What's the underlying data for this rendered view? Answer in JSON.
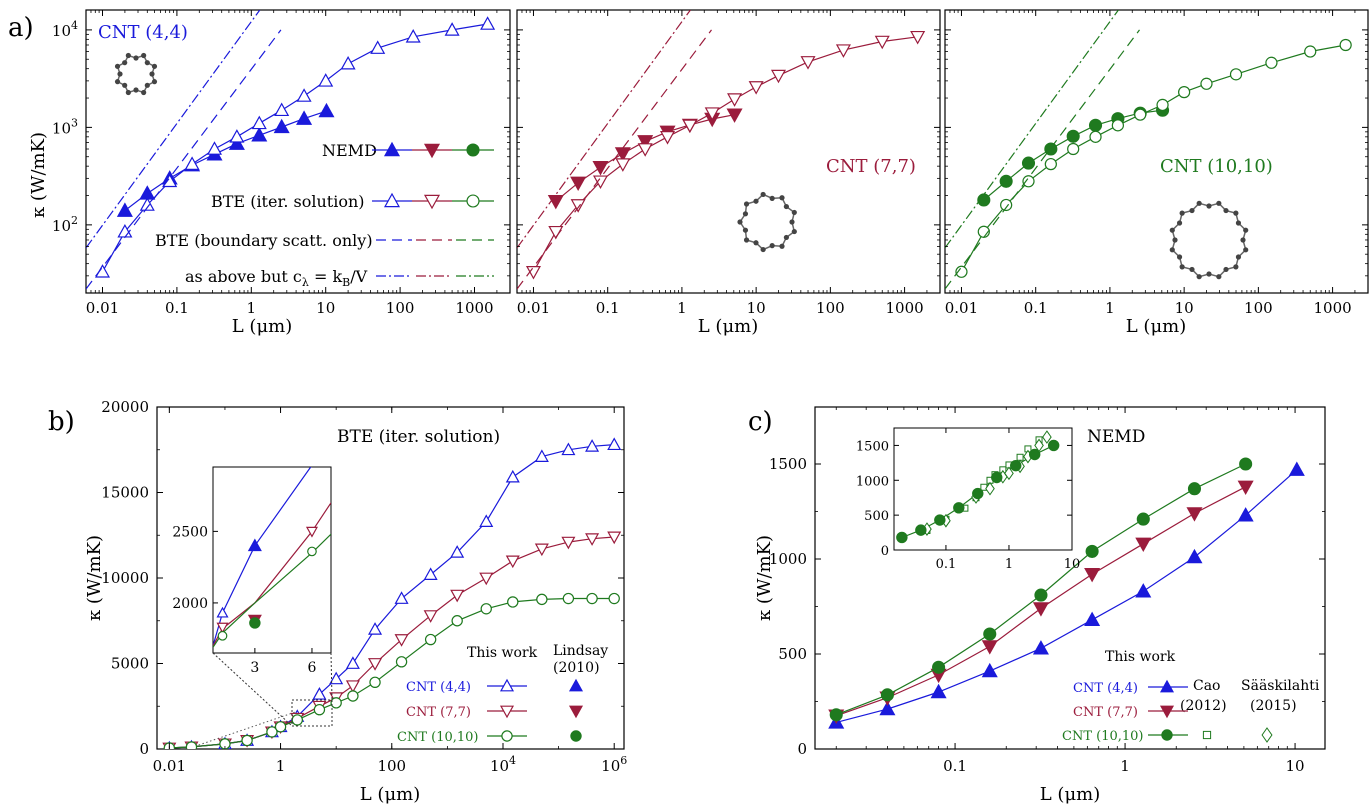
{
  "figure": {
    "panel_labels": [
      "a)",
      "b)",
      "c)"
    ]
  },
  "colors": {
    "blue": "#1a1adb",
    "red": "#9b1c3c",
    "green": "#1f7a1f"
  },
  "chart_data": [
    {
      "id": "a1",
      "type": "line",
      "title": "CNT (4,4)",
      "xlabel": "L (μm)",
      "ylabel": "κ (W/mK)",
      "xscale": "log",
      "yscale": "log",
      "xlim": [
        0.006,
        3000
      ],
      "ylim": [
        20,
        16000
      ],
      "xticks": [
        "0.01",
        "0.1",
        "1",
        "10",
        "100",
        "1000"
      ],
      "yticks": [
        "10^2",
        "10^3",
        "10^4"
      ],
      "legend": [
        {
          "label": "NEMD"
        },
        {
          "label": "BTE (iter. solution)"
        },
        {
          "label": "BTE (boundary scatt. only)"
        },
        {
          "label": "as above but c_λ = k_B/V"
        }
      ],
      "series": [
        {
          "name": "NEMD",
          "marker": "triangle-filled",
          "x": [
            0.02,
            0.04,
            0.08,
            0.16,
            0.32,
            0.64,
            1.28,
            2.56,
            5.12,
            10.24
          ],
          "y": [
            140,
            210,
            300,
            410,
            530,
            680,
            830,
            1010,
            1230,
            1470
          ]
        },
        {
          "name": "BTE (iter. solution)",
          "marker": "triangle-open",
          "x": [
            0.01,
            0.02,
            0.04,
            0.08,
            0.16,
            0.32,
            0.64,
            1.28,
            2.56,
            5.12,
            10,
            20,
            50,
            150,
            500,
            1500
          ],
          "y": [
            33,
            85,
            160,
            280,
            420,
            600,
            800,
            1100,
            1500,
            2100,
            3000,
            4500,
            6500,
            8500,
            10000,
            11500
          ]
        },
        {
          "name": "BTE (boundary scatt. only)",
          "line": "dashed",
          "x": [
            0.006,
            2.5
          ],
          "y": [
            22,
            10000
          ]
        },
        {
          "name": "as above but c_λ = k_B/V",
          "line": "dashdot",
          "x": [
            0.006,
            1.3
          ],
          "y": [
            58,
            16000
          ]
        }
      ]
    },
    {
      "id": "a2",
      "type": "line",
      "title": "CNT (7,7)",
      "xlabel": "L (μm)",
      "xscale": "log",
      "yscale": "log",
      "xlim": [
        0.006,
        3000
      ],
      "ylim": [
        20,
        16000
      ],
      "xticks": [
        "0.01",
        "0.1",
        "1",
        "10",
        "100",
        "1000"
      ],
      "series": [
        {
          "name": "NEMD",
          "marker": "triangle-down-filled",
          "x": [
            0.02,
            0.04,
            0.08,
            0.16,
            0.32,
            0.64,
            1.28,
            2.56,
            5.12
          ],
          "y": [
            175,
            270,
            390,
            540,
            720,
            900,
            1060,
            1220,
            1350
          ]
        },
        {
          "name": "BTE (iter. solution)",
          "marker": "triangle-down-open",
          "x": [
            0.01,
            0.02,
            0.04,
            0.08,
            0.16,
            0.32,
            0.64,
            1.28,
            2.56,
            5.12,
            10,
            20,
            50,
            150,
            500,
            1500
          ],
          "y": [
            33,
            85,
            160,
            280,
            420,
            600,
            800,
            1050,
            1400,
            1950,
            2600,
            3400,
            4700,
            6200,
            7600,
            8500
          ]
        },
        {
          "name": "BTE (boundary scatt. only)",
          "line": "dashed",
          "x": [
            0.006,
            2.5
          ],
          "y": [
            22,
            10000
          ]
        },
        {
          "name": "as above but c_λ = k_B/V",
          "line": "dashdot",
          "x": [
            0.006,
            1.3
          ],
          "y": [
            58,
            16000
          ]
        }
      ]
    },
    {
      "id": "a3",
      "type": "line",
      "title": "CNT (10,10)",
      "xlabel": "L (μm)",
      "xscale": "log",
      "yscale": "log",
      "xlim": [
        0.006,
        3000
      ],
      "ylim": [
        20,
        16000
      ],
      "xticks": [
        "0.01",
        "0.1",
        "1",
        "10",
        "100",
        "1000"
      ],
      "series": [
        {
          "name": "NEMD",
          "marker": "circle-filled",
          "x": [
            0.02,
            0.04,
            0.08,
            0.16,
            0.32,
            0.64,
            1.28,
            2.56,
            5.12
          ],
          "y": [
            180,
            280,
            430,
            600,
            810,
            1050,
            1230,
            1400,
            1500
          ]
        },
        {
          "name": "BTE (iter. solution)",
          "marker": "circle-open",
          "x": [
            0.01,
            0.02,
            0.04,
            0.08,
            0.16,
            0.32,
            0.64,
            1.28,
            2.56,
            5.12,
            10,
            20,
            50,
            150,
            500,
            1500
          ],
          "y": [
            33,
            85,
            160,
            280,
            420,
            600,
            800,
            1050,
            1350,
            1700,
            2300,
            2800,
            3500,
            4600,
            6000,
            7000
          ]
        },
        {
          "name": "BTE (boundary scatt. only)",
          "line": "dashed",
          "x": [
            0.006,
            2.5
          ],
          "y": [
            22,
            10000
          ]
        },
        {
          "name": "as above but c_λ = k_B/V",
          "line": "dashdot",
          "x": [
            0.006,
            1.3
          ],
          "y": [
            58,
            16000
          ]
        }
      ]
    },
    {
      "id": "b",
      "type": "line",
      "title": "BTE (iter. solution)",
      "xlabel": "L (μm)",
      "ylabel": "κ (W/mK)",
      "xscale": "log",
      "yscale": "linear",
      "xlim": [
        0.006,
        1500000
      ],
      "ylim": [
        0,
        20000
      ],
      "xticks": [
        "0.01",
        "1",
        "100",
        "10^4",
        "10^6"
      ],
      "yticks": [
        "0",
        "5000",
        "10000",
        "15000",
        "20000"
      ],
      "legend_title": "This work",
      "legend_ref": "Lindsay (2010)",
      "series": [
        {
          "name": "CNT (4,4)",
          "marker": "triangle-open",
          "x": [
            0.01,
            0.025,
            0.1,
            0.25,
            0.7,
            1,
            2,
            5,
            10,
            20,
            50,
            150,
            500,
            1500,
            5000,
            15000,
            50000,
            150000,
            400000,
            1000000
          ],
          "y": [
            60,
            120,
            300,
            500,
            1000,
            1300,
            1900,
            3200,
            4100,
            5000,
            7000,
            8800,
            10200,
            11500,
            13300,
            15900,
            17100,
            17500,
            17700,
            17800
          ]
        },
        {
          "name": "CNT (7,7)",
          "marker": "triangle-down-open",
          "x": [
            0.01,
            0.025,
            0.1,
            0.25,
            0.7,
            1,
            2,
            5,
            10,
            20,
            50,
            150,
            500,
            1500,
            5000,
            15000,
            50000,
            150000,
            400000,
            1000000
          ],
          "y": [
            60,
            120,
            300,
            500,
            1000,
            1300,
            1800,
            2500,
            3000,
            3700,
            5000,
            6400,
            7800,
            9000,
            10000,
            11000,
            11700,
            12100,
            12300,
            12400
          ]
        },
        {
          "name": "CNT (10,10)",
          "marker": "circle-open",
          "x": [
            0.01,
            0.025,
            0.1,
            0.25,
            0.7,
            1,
            2,
            5,
            10,
            20,
            50,
            150,
            500,
            1500,
            5000,
            15000,
            50000,
            150000,
            400000,
            1000000
          ],
          "y": [
            60,
            120,
            300,
            500,
            1000,
            1300,
            1700,
            2300,
            2700,
            3100,
            3900,
            5100,
            6400,
            7500,
            8200,
            8600,
            8750,
            8800,
            8800,
            8800
          ]
        }
      ],
      "inset": {
        "xlim": [
          0.8,
          7
        ],
        "ylim": [
          1650,
          2950
        ],
        "xticks": [
          "3",
          "6"
        ],
        "yticks": [
          "2000",
          "2500"
        ],
        "lindsay_points": [
          {
            "series": "CNT (4,4)",
            "x": 3,
            "y": 2400
          },
          {
            "series": "CNT (7,7)",
            "x": 3,
            "y": 1880
          },
          {
            "series": "CNT (10,10)",
            "x": 3,
            "y": 1860
          }
        ]
      }
    },
    {
      "id": "c",
      "type": "line",
      "title": "NEMD",
      "xlabel": "L (μm)",
      "ylabel": "κ (W/mK)",
      "xscale": "log",
      "yscale": "linear",
      "xlim": [
        0.015,
        15
      ],
      "ylim": [
        0,
        1800
      ],
      "xticks": [
        "0.1",
        "1",
        "10"
      ],
      "yticks": [
        "0",
        "500",
        "1000",
        "1500"
      ],
      "legend_title": "This work",
      "refs": [
        "Cao (2012)",
        "Sääskilahti (2015)"
      ],
      "series": [
        {
          "name": "CNT (4,4)",
          "marker": "triangle-filled",
          "x": [
            0.02,
            0.04,
            0.08,
            0.16,
            0.32,
            0.64,
            1.28,
            2.56,
            5.12,
            10.24
          ],
          "y": [
            140,
            210,
            300,
            410,
            530,
            680,
            830,
            1010,
            1230,
            1470
          ]
        },
        {
          "name": "CNT (7,7)",
          "marker": "triangle-down-filled",
          "x": [
            0.02,
            0.04,
            0.08,
            0.16,
            0.32,
            0.64,
            1.28,
            2.56,
            5.12
          ],
          "y": [
            175,
            270,
            390,
            540,
            740,
            920,
            1080,
            1240,
            1380
          ]
        },
        {
          "name": "CNT (10,10)",
          "marker": "circle-filled",
          "x": [
            0.02,
            0.04,
            0.08,
            0.16,
            0.32,
            0.64,
            1.28,
            2.56,
            5.12
          ],
          "y": [
            180,
            285,
            430,
            605,
            810,
            1040,
            1210,
            1370,
            1500
          ]
        }
      ],
      "inset": {
        "xlim": [
          0.015,
          10
        ],
        "ylim": [
          0,
          1750
        ],
        "xticks": [
          "0.1",
          "1",
          "10"
        ],
        "yticks": [
          "0",
          "500",
          "1000",
          "1500"
        ],
        "cao": {
          "x": [
            0.05,
            0.1,
            0.2,
            0.3,
            0.4,
            0.5,
            0.6,
            0.8,
            1.0,
            1.5,
            2.0,
            3.0
          ],
          "y": [
            280,
            440,
            600,
            750,
            900,
            1000,
            1080,
            1150,
            1220,
            1330,
            1450,
            1580
          ]
        },
        "saaskilahti": {
          "x": [
            0.05,
            0.1,
            0.3,
            0.5,
            0.8,
            1.0,
            1.5,
            2.0,
            3.0,
            4.0
          ],
          "y": [
            300,
            420,
            760,
            880,
            1050,
            1100,
            1200,
            1340,
            1500,
            1620
          ]
        }
      }
    }
  ]
}
